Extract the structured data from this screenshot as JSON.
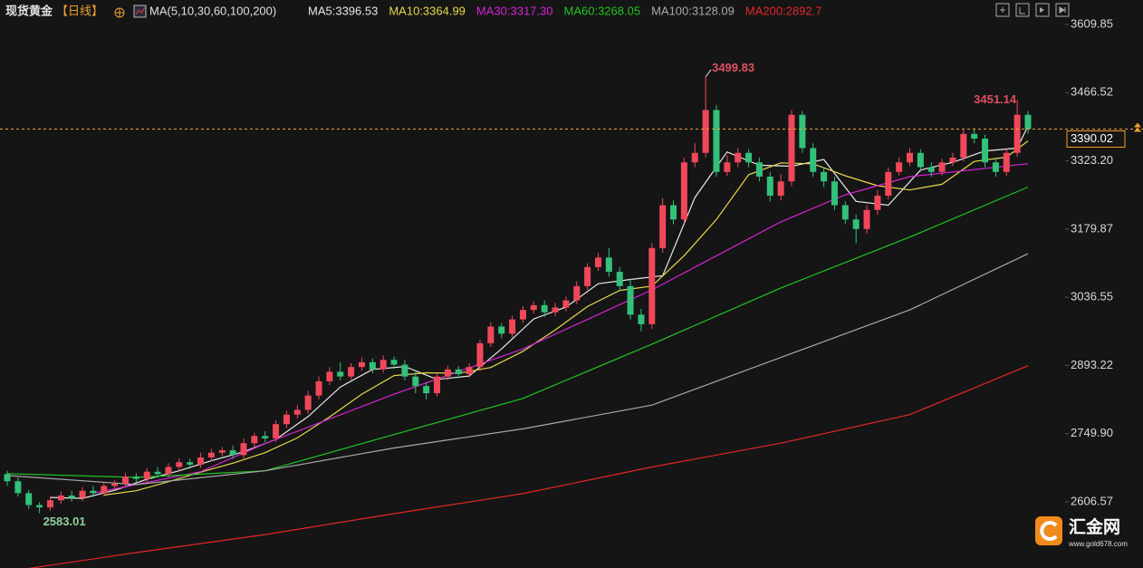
{
  "chart_data": {
    "type": "candlestick",
    "title": "现货黄金",
    "period": "【日线】",
    "indicator": "MA(5,10,30,60,100,200)",
    "watermark": {
      "name": "汇金网",
      "site": "www.gold678.com"
    },
    "up_color": "#f0485a",
    "down_color": "#33c07a",
    "last_price_color": "#f0a030",
    "grid": false,
    "ylim": [
      2467.7,
      3661.2
    ],
    "yticks": [
      3609.85,
      3466.52,
      {
        "value": 3323.2,
        "label": "3323.20"
      },
      3179.87,
      3036.55,
      2893.22,
      {
        "value": 2749.9,
        "label": "2749.90"
      },
      2606.57
    ],
    "open": [
      2665,
      2650,
      2625,
      2600,
      2595,
      2610,
      2620,
      2615,
      2630,
      2625,
      2640,
      2645,
      2660,
      2655,
      2670,
      2665,
      2680,
      2690,
      2685,
      2700,
      2710,
      2715,
      2705,
      2730,
      2745,
      2740,
      2770,
      2790,
      2800,
      2830,
      2860,
      2880,
      2870,
      2890,
      2900,
      2885,
      2905,
      2895,
      2870,
      2850,
      2835,
      2870,
      2885,
      2875,
      2890,
      2940,
      2975,
      2960,
      2990,
      3010,
      3020,
      3005,
      3015,
      3030,
      3060,
      3100,
      3120,
      3090,
      3060,
      3000,
      2980,
      3140,
      3230,
      3200,
      3320,
      3340,
      3430,
      3300,
      3320,
      3340,
      3320,
      3290,
      3250,
      3280,
      3420,
      3350,
      3300,
      3280,
      3230,
      3200,
      3180,
      3220,
      3250,
      3300,
      3320,
      3340,
      3310,
      3300,
      3320,
      3330,
      3380,
      3370,
      3320,
      3300,
      3340,
      3420
    ],
    "high": [
      2672,
      2658,
      2632,
      2606,
      2618,
      2628,
      2630,
      2638,
      2640,
      2648,
      2652,
      2668,
      2667,
      2678,
      2680,
      2688,
      2698,
      2697,
      2710,
      2718,
      2722,
      2725,
      2740,
      2752,
      2755,
      2778,
      2798,
      2810,
      2840,
      2870,
      2890,
      2900,
      2898,
      2910,
      2908,
      2914,
      2912,
      2905,
      2880,
      2858,
      2878,
      2893,
      2892,
      2898,
      2948,
      2984,
      2982,
      2998,
      3018,
      3028,
      3030,
      3025,
      3038,
      3070,
      3108,
      3130,
      3140,
      3100,
      3075,
      3012,
      3150,
      3245,
      3240,
      3330,
      3360,
      3499.83,
      3440,
      3335,
      3350,
      3348,
      3330,
      3300,
      3295,
      3430,
      3428,
      3360,
      3310,
      3290,
      3238,
      3210,
      3230,
      3262,
      3310,
      3330,
      3350,
      3348,
      3320,
      3328,
      3340,
      3390,
      3392,
      3378,
      3330,
      3348,
      3451.14,
      3428
    ],
    "low": [
      2640,
      2618,
      2592,
      2583.01,
      2588,
      2603,
      2607,
      2608,
      2617,
      2618,
      2632,
      2638,
      2648,
      2647,
      2657,
      2658,
      2672,
      2676,
      2678,
      2692,
      2702,
      2697,
      2698,
      2722,
      2732,
      2733,
      2762,
      2782,
      2792,
      2822,
      2852,
      2862,
      2863,
      2882,
      2877,
      2878,
      2886,
      2862,
      2835,
      2822,
      2828,
      2862,
      2866,
      2868,
      2882,
      2932,
      2950,
      2952,
      2982,
      3002,
      2995,
      2997,
      3007,
      3022,
      3052,
      3092,
      3080,
      3050,
      2990,
      2965,
      2970,
      3130,
      3190,
      3192,
      3310,
      3330,
      3290,
      3292,
      3310,
      3310,
      3280,
      3238,
      3240,
      3270,
      3340,
      3290,
      3268,
      3220,
      3190,
      3150,
      3170,
      3210,
      3242,
      3292,
      3312,
      3300,
      3290,
      3292,
      3312,
      3322,
      3360,
      3310,
      3290,
      3292,
      3332,
      3380
    ],
    "close": [
      2650,
      2625,
      2600,
      2595,
      2610,
      2620,
      2615,
      2630,
      2625,
      2640,
      2645,
      2660,
      2655,
      2670,
      2665,
      2680,
      2690,
      2685,
      2700,
      2710,
      2715,
      2705,
      2730,
      2745,
      2740,
      2770,
      2790,
      2800,
      2830,
      2860,
      2880,
      2870,
      2890,
      2900,
      2885,
      2905,
      2895,
      2870,
      2850,
      2835,
      2870,
      2885,
      2875,
      2890,
      2940,
      2975,
      2960,
      2990,
      3010,
      3020,
      3005,
      3015,
      3030,
      3060,
      3100,
      3120,
      3090,
      3060,
      3000,
      2980,
      3140,
      3230,
      3200,
      3320,
      3340,
      3430,
      3300,
      3320,
      3340,
      3320,
      3290,
      3250,
      3280,
      3420,
      3350,
      3300,
      3280,
      3230,
      3200,
      3180,
      3220,
      3250,
      3300,
      3320,
      3340,
      3310,
      3300,
      3320,
      3330,
      3380,
      3370,
      3320,
      3300,
      3340,
      3420,
      3390.02
    ],
    "series": [
      {
        "name": "MA5:3396.53",
        "color": "#e8e8e8",
        "x": [
          4,
          7,
          10,
          13,
          16,
          19,
          22,
          25,
          28,
          31,
          34,
          37,
          40,
          43,
          46,
          49,
          52,
          55,
          58,
          61,
          64,
          67,
          70,
          73,
          76,
          79,
          82,
          85,
          88,
          91,
          94,
          95
        ],
        "values": [
          2616,
          2614,
          2631,
          2654,
          2672,
          2693,
          2712,
          2738,
          2786,
          2848,
          2885,
          2891,
          2864,
          2871,
          2928,
          2991,
          3016,
          3065,
          3074,
          3082,
          3246,
          3342,
          3314,
          3312,
          3326,
          3238,
          3230,
          3304,
          3320,
          3344,
          3350,
          3396.53
        ]
      },
      {
        "name": "MA10:3364.99",
        "color": "#e6d84c",
        "x": [
          9,
          12,
          15,
          18,
          21,
          24,
          27,
          30,
          33,
          36,
          39,
          42,
          45,
          48,
          51,
          54,
          57,
          60,
          63,
          66,
          69,
          72,
          75,
          78,
          81,
          84,
          87,
          90,
          93,
          95
        ],
        "values": [
          2621,
          2630,
          2649,
          2669,
          2688,
          2710,
          2741,
          2785,
          2833,
          2872,
          2878,
          2877,
          2889,
          2923,
          2968,
          3017,
          3051,
          3060,
          3124,
          3200,
          3294,
          3319,
          3317,
          3292,
          3271,
          3262,
          3274,
          3322,
          3331,
          3364.99
        ]
      },
      {
        "name": "MA30:3317.30",
        "color": "#d423d4",
        "x": [
          8,
          18,
          24,
          36,
          48,
          60,
          72,
          78,
          84,
          95
        ],
        "values": [
          2625,
          2670,
          2729,
          2833,
          2928,
          3052,
          3195,
          3252,
          3290,
          3317.3
        ]
      },
      {
        "name": "MA60:3268.05",
        "color": "#22c322",
        "x": [
          0,
          12,
          24,
          36,
          48,
          60,
          72,
          84,
          95
        ],
        "values": [
          2666,
          2658,
          2672,
          2748,
          2824,
          2938,
          3056,
          3163,
          3268.05
        ]
      },
      {
        "name": "MA100:3128.09",
        "color": "#a8a8a8",
        "x": [
          0,
          12,
          24,
          36,
          48,
          60,
          72,
          84,
          95
        ],
        "values": [
          2662,
          2643,
          2672,
          2720,
          2760,
          2810,
          2910,
          3010,
          3128.09
        ]
      },
      {
        "name": "MA200:2892.7",
        "color": "#e0262a",
        "x": [
          0,
          12,
          24,
          36,
          48,
          60,
          72,
          84,
          95
        ],
        "values": [
          2460,
          2500,
          2538,
          2582,
          2624,
          2680,
          2730,
          2790,
          2892.7
        ]
      }
    ]
  }
}
